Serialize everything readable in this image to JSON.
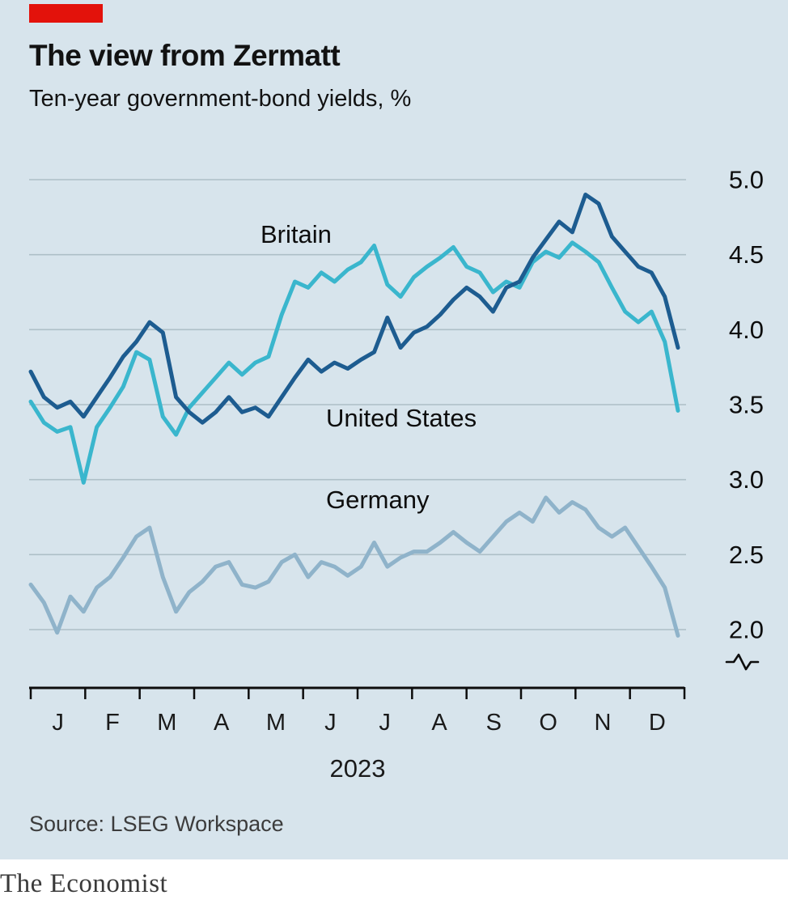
{
  "header": {
    "title": "The view from Zermatt",
    "subtitle": "Ten-year government-bond yields, %"
  },
  "chart_data": {
    "type": "line",
    "title": "The view from Zermatt",
    "subtitle": "Ten-year government-bond yields, %",
    "x_label": "2023",
    "x_tick_labels": [
      "J",
      "F",
      "M",
      "A",
      "M",
      "J",
      "J",
      "A",
      "S",
      "O",
      "N",
      "D"
    ],
    "y_ticks": [
      5.0,
      4.5,
      4.0,
      3.5,
      3.0,
      2.5,
      2.0
    ],
    "y_tick_labels": [
      "5.0",
      "4.5",
      "4.0",
      "3.5",
      "3.0",
      "2.5",
      "2.0"
    ],
    "ylim": [
      2.0,
      5.0
    ],
    "axis_break": true,
    "grid": "horizontal",
    "legend_position": "inline",
    "series": [
      {
        "name": "Britain",
        "color": "#3ab6cd",
        "values": [
          3.52,
          3.38,
          3.32,
          3.35,
          2.98,
          3.35,
          3.48,
          3.62,
          3.85,
          3.8,
          3.42,
          3.3,
          3.48,
          3.58,
          3.68,
          3.78,
          3.7,
          3.78,
          3.82,
          4.1,
          4.32,
          4.28,
          4.38,
          4.32,
          4.4,
          4.45,
          4.56,
          4.3,
          4.22,
          4.35,
          4.42,
          4.48,
          4.55,
          4.42,
          4.38,
          4.25,
          4.32,
          4.28,
          4.45,
          4.52,
          4.48,
          4.58,
          4.52,
          4.45,
          4.28,
          4.12,
          4.05,
          4.12,
          3.92,
          3.46
        ]
      },
      {
        "name": "United States",
        "color": "#1d5c90",
        "values": [
          3.72,
          3.55,
          3.48,
          3.52,
          3.42,
          3.55,
          3.68,
          3.82,
          3.92,
          4.05,
          3.98,
          3.55,
          3.45,
          3.38,
          3.45,
          3.55,
          3.45,
          3.48,
          3.42,
          3.55,
          3.68,
          3.8,
          3.72,
          3.78,
          3.74,
          3.8,
          3.85,
          4.08,
          3.88,
          3.98,
          4.02,
          4.1,
          4.2,
          4.28,
          4.22,
          4.12,
          4.28,
          4.32,
          4.48,
          4.6,
          4.72,
          4.65,
          4.9,
          4.84,
          4.62,
          4.52,
          4.42,
          4.38,
          4.22,
          3.88
        ]
      },
      {
        "name": "Germany",
        "color": "#8fb3ca",
        "values": [
          2.3,
          2.18,
          1.98,
          2.22,
          2.12,
          2.28,
          2.35,
          2.48,
          2.62,
          2.68,
          2.35,
          2.12,
          2.25,
          2.32,
          2.42,
          2.45,
          2.3,
          2.28,
          2.32,
          2.45,
          2.5,
          2.35,
          2.45,
          2.42,
          2.36,
          2.42,
          2.58,
          2.42,
          2.48,
          2.52,
          2.52,
          2.58,
          2.65,
          2.58,
          2.52,
          2.62,
          2.72,
          2.78,
          2.72,
          2.88,
          2.78,
          2.85,
          2.8,
          2.68,
          2.62,
          2.68,
          2.55,
          2.42,
          2.28,
          1.96
        ]
      }
    ]
  },
  "footer": {
    "source": "Source: LSEG Workspace"
  },
  "branding": {
    "wordmark": "The Economist"
  },
  "colors": {
    "background": "#d7e4ec",
    "accent_red": "#e3120b",
    "grid": "#aebfc7",
    "axis": "#0d0d0d",
    "britain": "#3ab6cd",
    "united_states": "#1d5c90",
    "germany": "#8fb3ca"
  }
}
